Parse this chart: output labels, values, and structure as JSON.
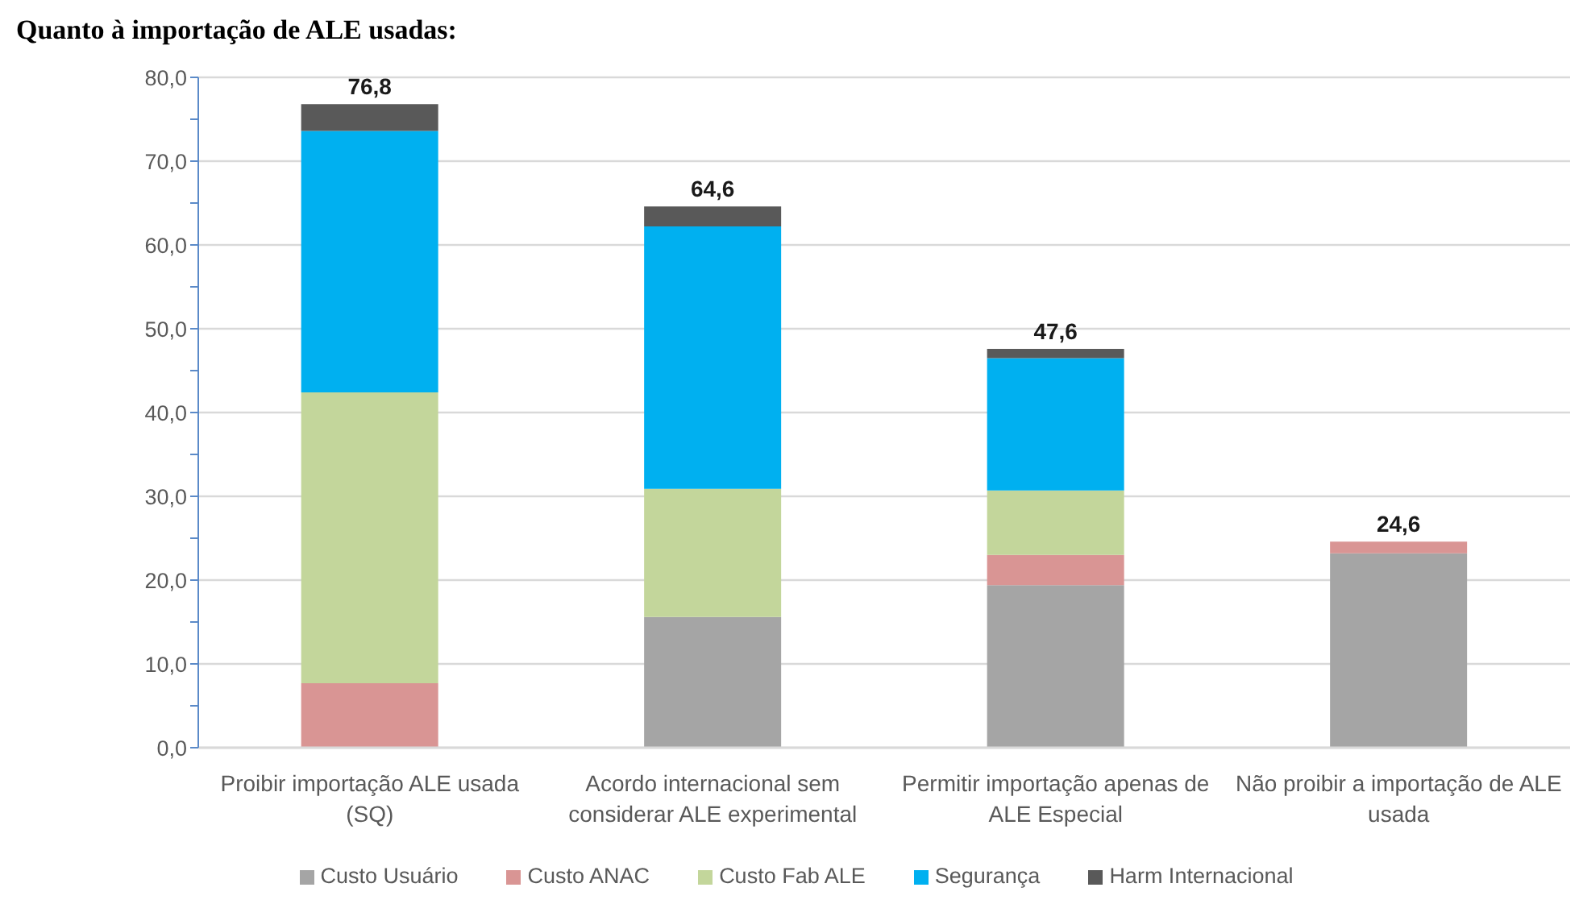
{
  "chart_data": {
    "type": "bar",
    "title": "Quanto à importação de ALE usadas:",
    "categories": [
      "Proibir importação ALE usada (SQ)",
      "Acordo internacional sem considerar ALE experimental",
      "Permitir importação apenas de ALE Especial",
      "Não proibir a importação de ALE usada"
    ],
    "stacked": true,
    "series": [
      {
        "name": "Custo Usuário",
        "color": "#a5a5a5",
        "values": [
          0,
          15.6,
          19.4,
          23.2
        ]
      },
      {
        "name": "Custo ANAC",
        "color": "#d99594",
        "values": [
          7.7,
          0,
          3.6,
          1.4
        ]
      },
      {
        "name": "Custo Fab ALE",
        "color": "#c3d69b",
        "values": [
          34.7,
          15.3,
          7.7,
          0
        ]
      },
      {
        "name": "Segurança",
        "color": "#00b0f0",
        "values": [
          31.2,
          31.3,
          15.8,
          0
        ]
      },
      {
        "name": "Harm Internacional",
        "color": "#595959",
        "values": [
          3.2,
          2.4,
          1.1,
          0
        ]
      }
    ],
    "ylim": [
      0,
      80
    ],
    "yticks": [
      {
        "value": 0,
        "label": "0,0"
      },
      {
        "value": 5,
        "label": null
      },
      {
        "value": 10,
        "label": "10,0"
      },
      {
        "value": 15,
        "label": null
      },
      {
        "value": 20,
        "label": "20,0"
      },
      {
        "value": 25,
        "label": null
      },
      {
        "value": 30,
        "label": "30,0"
      },
      {
        "value": 35,
        "label": null
      },
      {
        "value": 40,
        "label": "40,0"
      },
      {
        "value": 45,
        "label": null
      },
      {
        "value": 50,
        "label": "50,0"
      },
      {
        "value": 55,
        "label": null
      },
      {
        "value": 60,
        "label": "60,0"
      },
      {
        "value": 65,
        "label": null
      },
      {
        "value": 70,
        "label": "70,0"
      },
      {
        "value": 75,
        "label": null
      },
      {
        "value": 80,
        "label": "80,0"
      }
    ],
    "grid": "y",
    "legend": "bottom",
    "totals": [
      "76,8",
      "64,6",
      "47,6",
      "24,6"
    ]
  }
}
